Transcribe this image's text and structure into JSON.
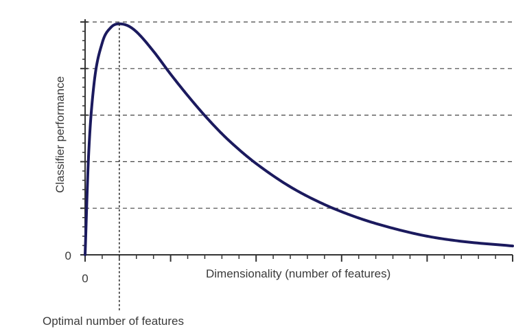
{
  "chart_data": {
    "type": "line",
    "title": "",
    "xlabel": "Dimensionality (number of features)",
    "ylabel": "Classifier performance",
    "x_tick_labels": [
      "0"
    ],
    "y_tick_labels": [
      "0"
    ],
    "annotation": "Optimal number of features",
    "xlim": [
      0,
      25
    ],
    "ylim": [
      0,
      5
    ],
    "grid": "horizontal-dashed",
    "colors": {
      "curve": "#1b1a5e",
      "axis": "#333333",
      "grid": "#444444"
    },
    "optimum_x": 2,
    "series": [
      {
        "x": [
          0,
          0.2,
          0.5,
          1,
          1.5,
          2,
          2.5,
          3,
          4,
          5,
          6,
          7,
          8,
          9,
          10,
          12,
          14,
          16,
          18,
          20,
          22,
          25
        ],
        "values": [
          0,
          2.1,
          3.6,
          4.55,
          4.88,
          4.96,
          4.92,
          4.79,
          4.37,
          3.88,
          3.42,
          2.99,
          2.6,
          2.26,
          1.96,
          1.46,
          1.08,
          0.79,
          0.57,
          0.4,
          0.29,
          0.19
        ]
      }
    ]
  }
}
